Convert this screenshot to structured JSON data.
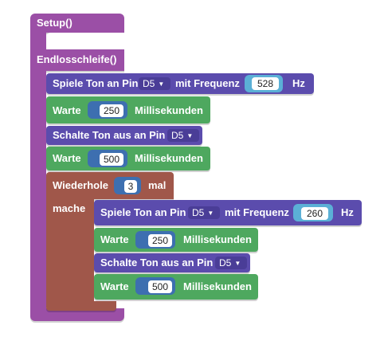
{
  "blocks": {
    "setup_label": "Setup()",
    "loop_label": "Endlosschleife()",
    "tone1": {
      "label": "Spiele Ton an Pin",
      "pin": "D5",
      "mid": "mit Frequenz",
      "freq": "528",
      "unit": "Hz"
    },
    "wait1": {
      "label": "Warte",
      "value": "250",
      "unit": "Millisekunden"
    },
    "off1": {
      "label": "Schalte Ton aus an Pin",
      "pin": "D5"
    },
    "wait2": {
      "label": "Warte",
      "value": "500",
      "unit": "Millisekunden"
    },
    "repeat": {
      "label": "Wiederhole",
      "count": "3",
      "suffix": "mal",
      "do_label": "mache"
    },
    "tone2": {
      "label": "Spiele Ton an Pin",
      "pin": "D5",
      "mid": "mit Frequenz",
      "freq": "260",
      "unit": "Hz"
    },
    "wait3": {
      "label": "Warte",
      "value": "250",
      "unit": "Millisekunden"
    },
    "off2": {
      "label": "Schalte Ton aus an Pin",
      "pin": "D5"
    },
    "wait4": {
      "label": "Warte",
      "value": "500",
      "unit": "Millisekunden"
    }
  },
  "colors": {
    "setup_block": "#9b4fa6",
    "sound_block": "#5b4cad",
    "wait_block": "#4ea85f",
    "repeat_block": "#a0574a"
  }
}
